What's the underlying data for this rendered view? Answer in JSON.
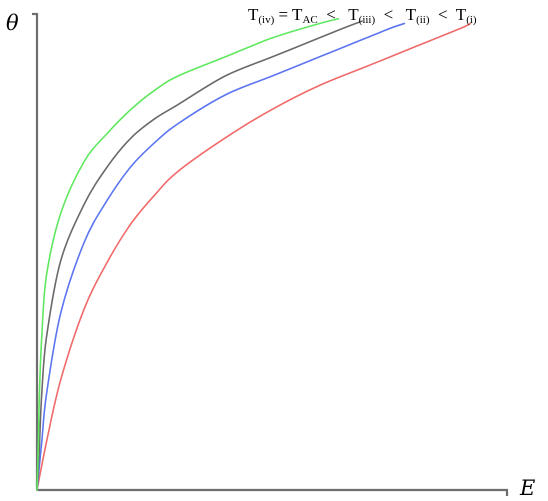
{
  "chart_data": {
    "type": "line",
    "xlabel": "E",
    "ylabel": "θ",
    "xlim": [
      0,
      1
    ],
    "ylim": [
      0,
      1
    ],
    "grid": false,
    "legend_placement": "top-right",
    "x_tick_labels": [],
    "y_tick_labels": [],
    "series": [
      {
        "name": "T(i)",
        "color": "#f06a6a",
        "x": [
          0,
          0.02,
          0.05,
          0.1,
          0.15,
          0.2,
          0.25,
          0.3,
          0.4,
          0.5,
          0.6,
          0.7,
          0.8,
          0.9,
          0.92
        ],
        "y": [
          0,
          0.1,
          0.23,
          0.38,
          0.48,
          0.56,
          0.62,
          0.67,
          0.74,
          0.8,
          0.85,
          0.89,
          0.93,
          0.97,
          0.98
        ]
      },
      {
        "name": "T(ii)",
        "color": "#5c75f0",
        "x": [
          0,
          0.01,
          0.02,
          0.05,
          0.1,
          0.15,
          0.2,
          0.25,
          0.3,
          0.4,
          0.5,
          0.6,
          0.7,
          0.75,
          0.78
        ],
        "y": [
          0,
          0.1,
          0.2,
          0.37,
          0.52,
          0.61,
          0.68,
          0.73,
          0.77,
          0.83,
          0.87,
          0.91,
          0.95,
          0.97,
          0.98
        ]
      },
      {
        "name": "T(iii)",
        "color": "#6a6a6a",
        "x": [
          0,
          0.005,
          0.01,
          0.02,
          0.05,
          0.1,
          0.15,
          0.2,
          0.25,
          0.3,
          0.4,
          0.5,
          0.6,
          0.65,
          0.69
        ],
        "y": [
          0,
          0.09,
          0.2,
          0.32,
          0.48,
          0.6,
          0.68,
          0.74,
          0.78,
          0.81,
          0.87,
          0.91,
          0.95,
          0.97,
          0.985
        ]
      },
      {
        "name": "T(iv) = TAC",
        "color": "#5fe85f",
        "x": [
          0,
          0.003,
          0.005,
          0.01,
          0.02,
          0.05,
          0.1,
          0.15,
          0.2,
          0.25,
          0.3,
          0.4,
          0.5,
          0.6,
          0.64
        ],
        "y": [
          0,
          0.1,
          0.2,
          0.32,
          0.45,
          0.58,
          0.69,
          0.75,
          0.8,
          0.84,
          0.87,
          0.91,
          0.95,
          0.98,
          0.99
        ]
      }
    ],
    "annotation": {
      "parts": [
        {
          "text": "T",
          "sub": false
        },
        {
          "text": "(iv)",
          "sub": true
        },
        {
          "text": " = T",
          "sub": false
        },
        {
          "text": "AC",
          "sub": true
        },
        {
          "text": "  <   T",
          "sub": false
        },
        {
          "text": "(iii)",
          "sub": true
        },
        {
          "text": "  <   T",
          "sub": false
        },
        {
          "text": "(ii)",
          "sub": true
        },
        {
          "text": "  <  T",
          "sub": false
        },
        {
          "text": "(i)",
          "sub": true
        }
      ]
    }
  }
}
